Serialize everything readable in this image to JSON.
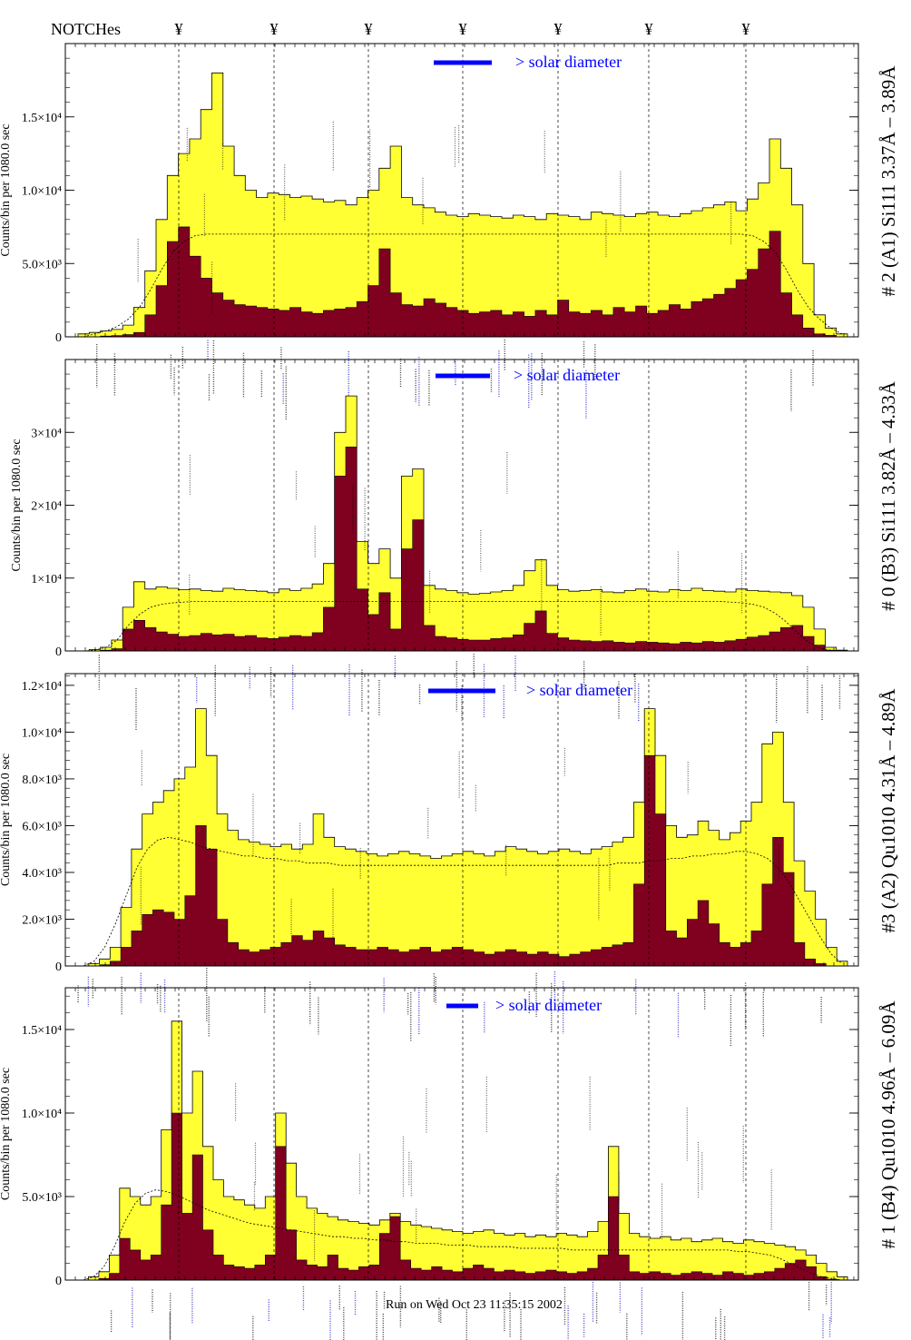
{
  "header": {
    "notches_label": "NOTCHes",
    "notch_glyph": "¥"
  },
  "footer": {
    "run_label": "Run on Wed Oct 23 11:35:15 2002"
  },
  "legend": {
    "solar_diameter_label": "> solar diameter",
    "bar_color": "#0000ff"
  },
  "colors": {
    "fill_total": "#ffff33",
    "fill_core": "#800020",
    "frame": "#000000",
    "annotation_blue": "#1010c0"
  },
  "chart_data": [
    {
      "type": "area",
      "panel": "A1",
      "title": "# 2 (A1) Si111  3.37Å – 3.89Å",
      "ylabel": "Counts/bin per   1080.0 sec",
      "ylim": [
        0,
        20000
      ],
      "yticks": [
        0,
        5000,
        10000,
        15000
      ],
      "yticklabels": [
        "0",
        "5.0×10³",
        "1.0×10⁴",
        "1.5×10⁴"
      ],
      "series": [
        {
          "values": [
            200,
            300,
            400,
            500,
            800,
            2000,
            4500,
            8000,
            11000,
            12500,
            13500,
            15500,
            18000,
            13000,
            11000,
            10000,
            9500,
            9800,
            9700,
            9500,
            9600,
            9400,
            9200,
            9300,
            9000,
            9500,
            10000,
            11500,
            13000,
            9500,
            9000,
            8800,
            8500,
            8300,
            8200,
            8400,
            8300,
            8200,
            8100,
            8300,
            8200,
            8000,
            8400,
            8300,
            8200,
            8000,
            8500,
            8400,
            8300,
            8200,
            8400,
            8500,
            8300,
            8200,
            8400,
            8600,
            8800,
            9000,
            9200,
            8600,
            9400,
            10500,
            13500,
            11500,
            9000,
            5000,
            1500,
            600,
            200
          ]
        },
        {
          "values": [
            0,
            0,
            50,
            80,
            150,
            300,
            1500,
            3500,
            6500,
            7500,
            5500,
            4000,
            3000,
            2500,
            2200,
            2100,
            2000,
            1900,
            1800,
            2000,
            1700,
            1600,
            1800,
            1900,
            2000,
            2400,
            3500,
            6000,
            3000,
            2200,
            2100,
            2600,
            2300,
            2000,
            1800,
            1600,
            1700,
            1800,
            1500,
            1700,
            1400,
            1800,
            1500,
            2500,
            1700,
            1600,
            1800,
            1500,
            2000,
            1700,
            2100,
            1600,
            1800,
            2200,
            1900,
            2400,
            2600,
            2900,
            3300,
            3900,
            4600,
            6000,
            7200,
            3000,
            1500,
            600,
            200,
            100,
            0
          ]
        },
        {
          "name": "",
          "values": [
            0,
            200,
            400,
            700,
            1200,
            2000,
            3200,
            4600,
            5800,
            6500,
            6900,
            7000,
            7000,
            7000,
            7000,
            7000,
            7000,
            7000,
            7000,
            7000,
            7000,
            7000,
            7000,
            7000,
            7000,
            7000,
            7000,
            7000,
            7000,
            7000,
            7000,
            7000,
            7000,
            7000,
            7000,
            7000,
            7000,
            7000,
            7000,
            7000,
            7000,
            7000,
            7000,
            7000,
            7000,
            7000,
            7000,
            7000,
            7000,
            7000,
            7000,
            7000,
            7000,
            7000,
            7000,
            7000,
            7000,
            7000,
            7000,
            7000,
            6900,
            6500,
            5800,
            4600,
            3200,
            2000,
            1200,
            600,
            200
          ]
        }
      ]
    },
    {
      "type": "area",
      "panel": "B3",
      "title": "# 0 (B3) Si111  3.82Å – 4.33Å",
      "ylabel": "Counts/bin per   1080.0 sec",
      "ylim": [
        0,
        40000
      ],
      "yticks": [
        0,
        10000,
        20000,
        30000
      ],
      "yticklabels": [
        "0",
        "1×10⁴",
        "2×10⁴",
        "3×10⁴"
      ],
      "series": [
        {
          "values": [
            0,
            200,
            500,
            1500,
            6000,
            9500,
            8500,
            8800,
            8600,
            8400,
            8500,
            8300,
            8200,
            8600,
            8400,
            8300,
            8200,
            8000,
            8500,
            8300,
            8600,
            9200,
            12000,
            30000,
            35000,
            15000,
            12000,
            14000,
            10000,
            24000,
            25000,
            9000,
            8500,
            8300,
            8000,
            7800,
            7900,
            8100,
            8300,
            9000,
            11000,
            12500,
            9000,
            8400,
            8200,
            8300,
            8400,
            8100,
            8000,
            8300,
            8500,
            8200,
            8100,
            8400,
            8300,
            8600,
            8300,
            8200,
            8100,
            8500,
            8300,
            8200,
            8100,
            8000,
            7600,
            6000,
            3000,
            500,
            100
          ]
        },
        {
          "values": [
            0,
            0,
            100,
            300,
            3000,
            4200,
            3200,
            2600,
            2300,
            2000,
            2100,
            2400,
            2200,
            2300,
            2000,
            2100,
            1800,
            1700,
            1900,
            2100,
            2000,
            2500,
            6000,
            24000,
            28000,
            8500,
            5000,
            8000,
            3000,
            14000,
            18000,
            3500,
            2000,
            1800,
            1600,
            1500,
            1500,
            1700,
            1800,
            2200,
            3800,
            5500,
            2400,
            1800,
            1500,
            1400,
            1300,
            1400,
            1200,
            1100,
            1300,
            1200,
            1100,
            1000,
            1200,
            1100,
            1300,
            1200,
            1400,
            1600,
            1900,
            2100,
            2600,
            3200,
            3500,
            2000,
            800,
            100,
            0
          ]
        },
        {
          "name": "",
          "values": [
            0,
            100,
            500,
            1500,
            3500,
            5000,
            6000,
            6400,
            6600,
            6700,
            6800,
            6800,
            6800,
            6800,
            6800,
            6800,
            6800,
            6800,
            6800,
            6800,
            6800,
            6800,
            6800,
            6800,
            6800,
            6800,
            6800,
            6800,
            6800,
            6800,
            6800,
            6800,
            6800,
            6800,
            6800,
            6800,
            6800,
            6800,
            6800,
            6800,
            6800,
            6800,
            6800,
            6800,
            6800,
            6800,
            6800,
            6800,
            6800,
            6800,
            6800,
            6800,
            6800,
            6800,
            6800,
            6800,
            6800,
            6800,
            6700,
            6600,
            6400,
            6000,
            5200,
            4000,
            2500,
            1200,
            400,
            100,
            0
          ]
        }
      ]
    },
    {
      "type": "area",
      "panel": "A2",
      "title": "#3 (A2) Qu1010  4.31Å – 4.89Å",
      "ylabel": "Counts/bin per   1080.0 sec",
      "ylim": [
        0,
        12500
      ],
      "yticks": [
        0,
        2000,
        4000,
        6000,
        8000,
        10000,
        12000
      ],
      "yticklabels": [
        "0",
        "2.0×10³",
        "4.0×10³",
        "6.0×10³",
        "8.0×10³",
        "1.0×10⁴",
        "1.2×10⁴"
      ],
      "series": [
        {
          "values": [
            0,
            100,
            300,
            800,
            2500,
            5000,
            6500,
            7000,
            7500,
            8000,
            8500,
            11000,
            9000,
            6500,
            5800,
            5400,
            5300,
            5200,
            5100,
            5200,
            5000,
            5200,
            6500,
            5500,
            5100,
            5000,
            4900,
            4800,
            4700,
            4800,
            4900,
            4800,
            4700,
            4600,
            4700,
            4800,
            4900,
            4800,
            4700,
            4900,
            5100,
            5000,
            4900,
            4800,
            4900,
            5000,
            4900,
            4800,
            5000,
            5100,
            5300,
            5500,
            7000,
            11000,
            9000,
            6000,
            5500,
            5600,
            6200,
            5800,
            5400,
            5700,
            6200,
            7000,
            9500,
            10000,
            7000,
            4500,
            3200,
            2000,
            800,
            200
          ]
        },
        {
          "values": [
            0,
            0,
            50,
            200,
            800,
            1500,
            2200,
            2400,
            2300,
            2000,
            3000,
            6000,
            5000,
            2000,
            1000,
            700,
            600,
            700,
            800,
            1000,
            1300,
            1100,
            1500,
            1200,
            900,
            800,
            700,
            700,
            800,
            700,
            600,
            700,
            800,
            600,
            700,
            800,
            700,
            600,
            500,
            600,
            700,
            600,
            500,
            600,
            500,
            400,
            500,
            600,
            700,
            800,
            900,
            1000,
            3500,
            9000,
            6500,
            1500,
            1200,
            2000,
            2800,
            1800,
            1000,
            800,
            1000,
            1500,
            3500,
            5500,
            4000,
            1000,
            300,
            100,
            0,
            0
          ]
        },
        {
          "name": "",
          "values": [
            0,
            200,
            800,
            1800,
            3000,
            4200,
            5000,
            5400,
            5500,
            5400,
            5300,
            5100,
            5000,
            4900,
            4800,
            4700,
            4700,
            4600,
            4600,
            4500,
            4500,
            4400,
            4400,
            4400,
            4300,
            4300,
            4300,
            4300,
            4300,
            4300,
            4300,
            4300,
            4300,
            4300,
            4300,
            4300,
            4300,
            4300,
            4300,
            4300,
            4300,
            4300,
            4300,
            4300,
            4300,
            4300,
            4300,
            4300,
            4300,
            4300,
            4400,
            4400,
            4400,
            4500,
            4500,
            4600,
            4600,
            4700,
            4700,
            4800,
            4800,
            4900,
            4900,
            4800,
            4600,
            4200,
            3600,
            2800,
            2000,
            1200,
            500,
            100
          ]
        }
      ]
    },
    {
      "type": "area",
      "panel": "B4",
      "title": "# 1 (B4) Qu1010 4.96Å – 6.09Å",
      "ylabel": "Counts/bin per   1080.0 sec",
      "ylim": [
        0,
        17500
      ],
      "yticks": [
        0,
        5000,
        10000,
        15000
      ],
      "yticklabels": [
        "0",
        "5.0×10³",
        "1.0×10⁴",
        "1.5×10⁴"
      ],
      "series": [
        {
          "values": [
            0,
            200,
            500,
            1500,
            5500,
            5000,
            4500,
            5000,
            9000,
            15500,
            10000,
            12500,
            8000,
            6000,
            5000,
            4800,
            4500,
            4300,
            5000,
            10000,
            7000,
            5000,
            4300,
            4000,
            3800,
            3600,
            3500,
            3400,
            3300,
            3600,
            4000,
            3500,
            3300,
            3200,
            3100,
            3000,
            2900,
            2800,
            2900,
            3000,
            2800,
            2700,
            2800,
            2600,
            2700,
            2600,
            2800,
            2700,
            2600,
            2900,
            3500,
            8000,
            4000,
            2800,
            2600,
            2500,
            2600,
            2400,
            2500,
            2300,
            2400,
            2500,
            2300,
            2200,
            2400,
            2300,
            2200,
            2100,
            2000,
            1800,
            1500,
            1000,
            500,
            200
          ]
        },
        {
          "values": [
            0,
            0,
            100,
            400,
            2500,
            1800,
            1200,
            1500,
            4500,
            10000,
            4000,
            7500,
            3000,
            1500,
            900,
            800,
            700,
            900,
            1500,
            8000,
            3000,
            1200,
            900,
            800,
            1500,
            700,
            600,
            800,
            900,
            2800,
            3800,
            1200,
            700,
            600,
            800,
            600,
            500,
            700,
            900,
            700,
            500,
            600,
            500,
            400,
            500,
            600,
            500,
            400,
            500,
            700,
            1500,
            5000,
            1500,
            500,
            400,
            500,
            400,
            300,
            400,
            500,
            400,
            300,
            500,
            400,
            300,
            400,
            500,
            700,
            1000,
            1200,
            800,
            200,
            50,
            0
          ]
        },
        {
          "name": "",
          "values": [
            0,
            200,
            800,
            2000,
            3500,
            4600,
            5200,
            5400,
            5300,
            5100,
            4800,
            4500,
            4200,
            4000,
            3800,
            3600,
            3400,
            3300,
            3200,
            3100,
            3000,
            2900,
            2800,
            2700,
            2600,
            2600,
            2500,
            2500,
            2400,
            2400,
            2300,
            2300,
            2200,
            2200,
            2200,
            2100,
            2100,
            2100,
            2000,
            2000,
            2000,
            2000,
            1900,
            1900,
            1900,
            1900,
            1900,
            1800,
            1800,
            1800,
            1800,
            1800,
            1800,
            1800,
            1800,
            1800,
            1800,
            1800,
            1800,
            1800,
            1800,
            1800,
            1800,
            1700,
            1700,
            1600,
            1500,
            1300,
            1000,
            700,
            400,
            200,
            100,
            0
          ]
        }
      ]
    }
  ]
}
